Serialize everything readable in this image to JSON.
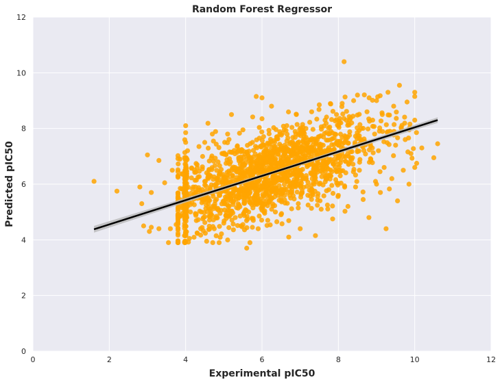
{
  "chart_data": {
    "type": "scatter",
    "title": "Random Forest Regressor",
    "xlabel": "Experimental pIC50",
    "ylabel": "Predicted pIC50",
    "xlim": [
      0,
      12
    ],
    "ylim": [
      0,
      12
    ],
    "xticks": [
      "0",
      "2",
      "4",
      "6",
      "8",
      "10",
      "12"
    ],
    "yticks": [
      "0",
      "2",
      "4",
      "6",
      "8",
      "10",
      "12"
    ],
    "grid": true,
    "background": "#eaeaf2",
    "point_color": "#ffa500",
    "line_color": "#000000",
    "band_color": "#b8b8b8",
    "regression": {
      "x": [
        1.6,
        10.6
      ],
      "y": [
        4.38,
        8.3
      ]
    },
    "points": [
      [
        1.6,
        6.1
      ],
      [
        2.2,
        5.75
      ],
      [
        2.8,
        5.9
      ],
      [
        2.85,
        5.3
      ],
      [
        2.9,
        4.5
      ],
      [
        3.0,
        7.05
      ],
      [
        3.05,
        4.3
      ],
      [
        3.1,
        5.7
      ],
      [
        3.1,
        4.45
      ],
      [
        3.3,
        6.85
      ],
      [
        3.3,
        4.4
      ],
      [
        3.45,
        6.05
      ],
      [
        3.55,
        3.9
      ],
      [
        3.6,
        4.4
      ],
      [
        3.65,
        6.5
      ],
      [
        3.75,
        4.55
      ],
      [
        3.8,
        3.95
      ],
      [
        3.8,
        6.3
      ],
      [
        3.85,
        6.9
      ],
      [
        3.85,
        4.85
      ],
      [
        3.9,
        5.15
      ],
      [
        4.0,
        8.1
      ],
      [
        4.0,
        7.85
      ],
      [
        4.0,
        7.5
      ],
      [
        4.0,
        6.6
      ],
      [
        4.0,
        6.3
      ],
      [
        4.0,
        6.0
      ],
      [
        4.0,
        5.7
      ],
      [
        4.0,
        5.4
      ],
      [
        4.0,
        5.1
      ],
      [
        4.0,
        4.8
      ],
      [
        4.0,
        4.5
      ],
      [
        4.0,
        4.2
      ],
      [
        4.0,
        3.95
      ],
      [
        4.05,
        7.2
      ],
      [
        4.05,
        5.2
      ],
      [
        4.1,
        4.05
      ],
      [
        4.2,
        5.9
      ],
      [
        4.3,
        4.25
      ],
      [
        4.3,
        6.7
      ],
      [
        4.35,
        7.35
      ],
      [
        4.4,
        5.5
      ],
      [
        4.45,
        4.75
      ],
      [
        4.5,
        7.5
      ],
      [
        4.5,
        6.1
      ],
      [
        4.55,
        3.95
      ],
      [
        4.6,
        5.15
      ],
      [
        4.65,
        6.3
      ],
      [
        4.7,
        7.8
      ],
      [
        4.75,
        4.4
      ],
      [
        4.8,
        5.9
      ],
      [
        4.85,
        6.8
      ],
      [
        4.9,
        4.95
      ],
      [
        4.95,
        7.1
      ],
      [
        5.0,
        5.4
      ],
      [
        5.0,
        4.6
      ],
      [
        5.05,
        6.25
      ],
      [
        5.1,
        7.8
      ],
      [
        5.15,
        5.05
      ],
      [
        5.2,
        8.5
      ],
      [
        5.25,
        5.7
      ],
      [
        5.3,
        4.8
      ],
      [
        5.3,
        6.6
      ],
      [
        5.35,
        7.35
      ],
      [
        5.4,
        5.25
      ],
      [
        5.45,
        6.05
      ],
      [
        5.5,
        4.55
      ],
      [
        5.5,
        7.95
      ],
      [
        5.55,
        5.6
      ],
      [
        5.6,
        6.9
      ],
      [
        5.6,
        3.7
      ],
      [
        5.65,
        5.0
      ],
      [
        5.7,
        6.3
      ],
      [
        5.75,
        7.5
      ],
      [
        5.8,
        5.45
      ],
      [
        5.85,
        9.15
      ],
      [
        5.9,
        4.4
      ],
      [
        5.95,
        6.7
      ],
      [
        6.0,
        9.1
      ],
      [
        6.0,
        5.2
      ],
      [
        6.0,
        8.35
      ],
      [
        6.05,
        6.05
      ],
      [
        6.1,
        7.25
      ],
      [
        6.15,
        4.7
      ],
      [
        6.2,
        5.65
      ],
      [
        6.25,
        8.8
      ],
      [
        6.3,
        6.5
      ],
      [
        6.35,
        5.0
      ],
      [
        6.4,
        7.7
      ],
      [
        6.45,
        5.95
      ],
      [
        6.5,
        4.9
      ],
      [
        6.55,
        7.0
      ],
      [
        6.6,
        6.3
      ],
      [
        6.65,
        8.1
      ],
      [
        6.7,
        4.1
      ],
      [
        6.75,
        5.5
      ],
      [
        6.8,
        7.4
      ],
      [
        6.85,
        6.6
      ],
      [
        6.9,
        8.5
      ],
      [
        6.95,
        5.3
      ],
      [
        7.0,
        6.9
      ],
      [
        7.0,
        4.4
      ],
      [
        7.05,
        7.8
      ],
      [
        7.1,
        6.2
      ],
      [
        7.15,
        8.0
      ],
      [
        7.2,
        5.6
      ],
      [
        7.25,
        7.3
      ],
      [
        7.3,
        8.6
      ],
      [
        7.35,
        6.5
      ],
      [
        7.4,
        4.15
      ],
      [
        7.45,
        7.6
      ],
      [
        7.5,
        6.0
      ],
      [
        7.5,
        8.85
      ],
      [
        7.55,
        5.1
      ],
      [
        7.6,
        7.1
      ],
      [
        7.65,
        8.3
      ],
      [
        7.7,
        6.6
      ],
      [
        7.75,
        5.8
      ],
      [
        7.8,
        7.9
      ],
      [
        7.85,
        4.75
      ],
      [
        7.9,
        6.9
      ],
      [
        7.95,
        8.5
      ],
      [
        8.0,
        5.6
      ],
      [
        8.0,
        7.4
      ],
      [
        8.05,
        6.3
      ],
      [
        8.1,
        8.9
      ],
      [
        8.15,
        10.4
      ],
      [
        8.2,
        7.7
      ],
      [
        8.25,
        5.2
      ],
      [
        8.3,
        6.8
      ],
      [
        8.35,
        8.2
      ],
      [
        8.4,
        9.0
      ],
      [
        8.45,
        5.9
      ],
      [
        8.5,
        7.2
      ],
      [
        8.5,
        9.2
      ],
      [
        8.55,
        6.5
      ],
      [
        8.6,
        8.0
      ],
      [
        8.65,
        5.45
      ],
      [
        8.7,
        7.5
      ],
      [
        8.75,
        8.6
      ],
      [
        8.8,
        4.8
      ],
      [
        8.85,
        6.9
      ],
      [
        8.9,
        8.3
      ],
      [
        8.95,
        7.8
      ],
      [
        9.0,
        9.0
      ],
      [
        9.0,
        6.0
      ],
      [
        9.05,
        7.2
      ],
      [
        9.1,
        5.7
      ],
      [
        9.15,
        8.5
      ],
      [
        9.2,
        6.6
      ],
      [
        9.25,
        4.4
      ],
      [
        9.3,
        9.3
      ],
      [
        9.35,
        7.9
      ],
      [
        9.4,
        6.2
      ],
      [
        9.45,
        8.8
      ],
      [
        9.5,
        7.4
      ],
      [
        9.55,
        5.4
      ],
      [
        9.6,
        9.55
      ],
      [
        9.65,
        8.0
      ],
      [
        9.7,
        6.5
      ],
      [
        9.75,
        7.6
      ],
      [
        9.8,
        8.95
      ],
      [
        9.85,
        6.0
      ],
      [
        9.9,
        7.1
      ],
      [
        10.0,
        9.3
      ],
      [
        10.0,
        9.15
      ],
      [
        10.0,
        8.3
      ],
      [
        10.0,
        6.6
      ],
      [
        10.05,
        6.75
      ],
      [
        10.5,
        6.95
      ],
      [
        10.6,
        7.45
      ]
    ]
  }
}
